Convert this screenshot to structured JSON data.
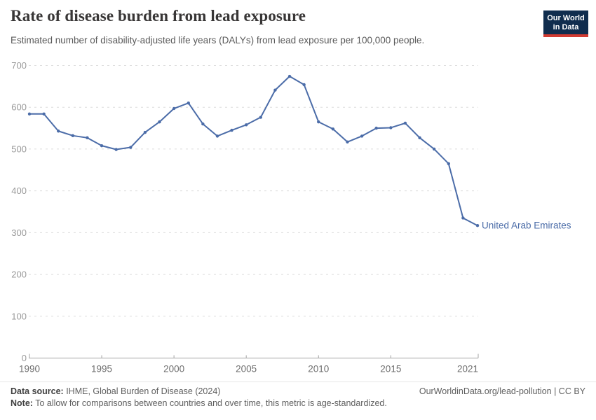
{
  "header": {
    "title": "Rate of disease burden from lead exposure",
    "subtitle": "Estimated number of disability-adjusted life years (DALYs) from lead exposure per 100,000 people.",
    "logo": {
      "line1": "Our World",
      "line2": "in Data",
      "bg_color": "#102d4e",
      "accent_color": "#d13b32"
    }
  },
  "chart_data": {
    "type": "line",
    "title": "Rate of disease burden from lead exposure",
    "xlabel": "",
    "ylabel": "",
    "xlim": [
      1990,
      2021
    ],
    "ylim": [
      0,
      700
    ],
    "xticks": [
      1990,
      1995,
      2000,
      2005,
      2010,
      2015,
      2021
    ],
    "yticks": [
      0,
      100,
      200,
      300,
      400,
      500,
      600,
      700
    ],
    "grid": "horizontal-dashed",
    "legend": "end-of-line-label",
    "line_color": "#4b6ca8",
    "series": [
      {
        "name": "United Arab Emirates",
        "color": "#4b6ca8",
        "x": [
          1990,
          1991,
          1992,
          1993,
          1994,
          1995,
          1996,
          1997,
          1998,
          1999,
          2000,
          2001,
          2002,
          2003,
          2004,
          2005,
          2006,
          2007,
          2008,
          2009,
          2010,
          2011,
          2012,
          2013,
          2014,
          2015,
          2016,
          2017,
          2018,
          2019,
          2020,
          2021
        ],
        "values": [
          584,
          584,
          543,
          532,
          527,
          508,
          499,
          504,
          540,
          565,
          597,
          610,
          560,
          531,
          545,
          558,
          576,
          641,
          674,
          654,
          565,
          548,
          517,
          531,
          550,
          551,
          562,
          527,
          500,
          465,
          335,
          317
        ]
      }
    ]
  },
  "footer": {
    "source_label": "Data source:",
    "source_text": " IHME, Global Burden of Disease (2024)",
    "link": "OurWorldinData.org/lead-pollution | CC BY",
    "note_label": "Note:",
    "note_text": " To allow for comparisons between countries and over time, this metric is age-standardized."
  }
}
